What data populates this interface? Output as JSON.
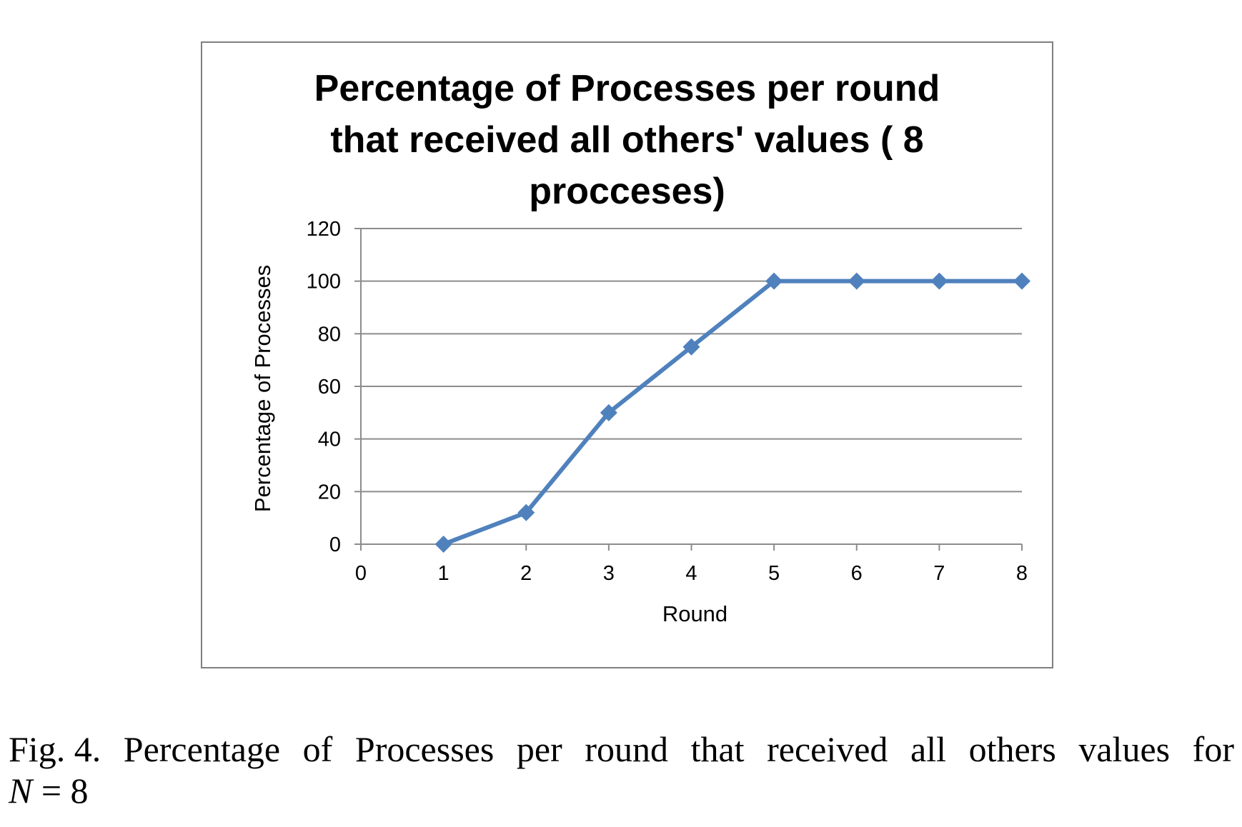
{
  "chart_data": {
    "type": "line",
    "title_lines": [
      "Percentage of Processes per round",
      "that received all others' values ( 8",
      "procceses)"
    ],
    "xlabel": "Round",
    "ylabel": "Percentage of Processes",
    "xlim": [
      0,
      8
    ],
    "ylim": [
      0,
      120
    ],
    "xticks": [
      "0",
      "1",
      "2",
      "3",
      "4",
      "5",
      "6",
      "7",
      "8"
    ],
    "yticks": [
      "0",
      "20",
      "40",
      "60",
      "80",
      "100",
      "120"
    ],
    "grid": "horizontal",
    "marker": "diamond",
    "series": [
      {
        "color": "#4f81bd",
        "x": [
          1,
          2,
          3,
          4,
          5,
          6,
          7,
          8
        ],
        "values": [
          0,
          12,
          50,
          75,
          100,
          100,
          100,
          100
        ]
      }
    ]
  },
  "caption": {
    "label": "Fig. 4.",
    "words": [
      "Percentage",
      "of",
      "Processes",
      "per",
      "round",
      "that",
      "received",
      "all",
      "others",
      "values",
      "for"
    ],
    "line2_var": "N",
    "line2_rest": " = 8"
  }
}
